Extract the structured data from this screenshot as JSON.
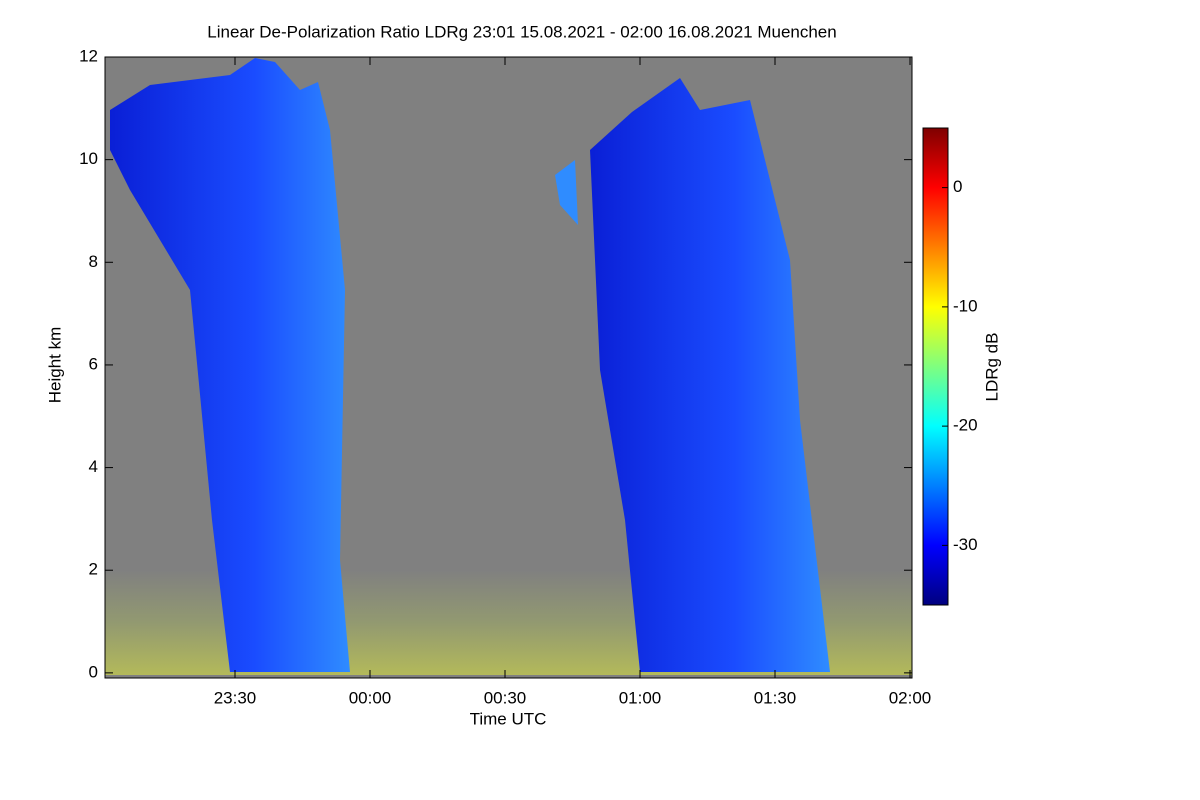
{
  "chart_data": {
    "type": "heatmap",
    "title": "Linear De-Polarization Ratio LDRg   23:01 15.08.2021 - 02:00 16.08.2021 Muenchen",
    "xlabel": "Time UTC",
    "ylabel": "Height km",
    "xlim": [
      1,
      180
    ],
    "xticks": [
      {
        "value": 30,
        "label": "23:30"
      },
      {
        "value": 60,
        "label": "00:00"
      },
      {
        "value": 90,
        "label": "00:30"
      },
      {
        "value": 120,
        "label": "01:00"
      },
      {
        "value": 150,
        "label": "01:30"
      },
      {
        "value": 180,
        "label": "02:00"
      }
    ],
    "ylim": [
      -0.1,
      12
    ],
    "yticks": [
      0,
      2,
      4,
      6,
      8,
      10,
      12
    ],
    "colorbar": {
      "label": "LDRg dB",
      "lim": [
        -35,
        5
      ],
      "ticks": [
        -30,
        -20,
        -10,
        0
      ],
      "colors": [
        "#00007f",
        "#0000ff",
        "#007fff",
        "#00ffff",
        "#7fff7f",
        "#ffff00",
        "#ff7f00",
        "#ff0000",
        "#7f0000"
      ]
    }
  }
}
